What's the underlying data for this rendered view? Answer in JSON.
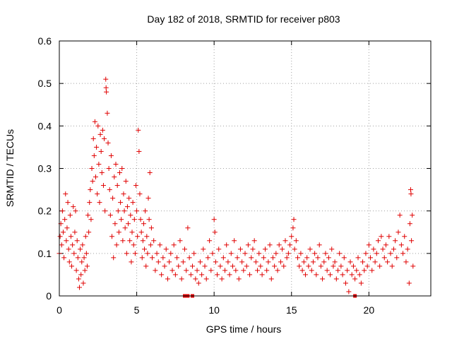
{
  "chart_data": {
    "type": "scatter",
    "title": "Day 182 of 2018, SRMTID for receiver p803",
    "xlabel": "GPS time / hours",
    "ylabel": "SRMTID / TECUs",
    "xlim": [
      0,
      24
    ],
    "ylim": [
      0,
      0.6
    ],
    "xticks": [
      0,
      5,
      10,
      15,
      20
    ],
    "yticks": [
      0,
      0.1,
      0.2,
      0.3,
      0.4,
      0.5,
      0.6
    ],
    "xtick_labels": [
      "0",
      "5",
      "10",
      "15",
      "20"
    ],
    "ytick_labels": [
      "0",
      "0.1",
      "0.2",
      "0.3",
      "0.4",
      "0.5",
      "0.6"
    ],
    "grid": true,
    "series_color": "#e00000",
    "series": [
      {
        "name": "SRMTID",
        "marker": "plus",
        "points": [
          [
            0.0,
            0.1
          ],
          [
            0.05,
            0.14
          ],
          [
            0.1,
            0.17
          ],
          [
            0.15,
            0.12
          ],
          [
            0.2,
            0.2
          ],
          [
            0.25,
            0.15
          ],
          [
            0.3,
            0.09
          ],
          [
            0.35,
            0.18
          ],
          [
            0.4,
            0.24
          ],
          [
            0.45,
            0.13
          ],
          [
            0.5,
            0.16
          ],
          [
            0.55,
            0.22
          ],
          [
            0.6,
            0.11
          ],
          [
            0.65,
            0.08
          ],
          [
            0.7,
            0.19
          ],
          [
            0.75,
            0.14
          ],
          [
            0.8,
            0.07
          ],
          [
            0.85,
            0.12
          ],
          [
            0.9,
            0.21
          ],
          [
            0.95,
            0.1
          ],
          [
            1.0,
            0.15
          ],
          [
            1.05,
            0.2
          ],
          [
            1.1,
            0.06
          ],
          [
            1.15,
            0.13
          ],
          [
            1.2,
            0.09
          ],
          [
            1.25,
            0.04
          ],
          [
            1.3,
            0.02
          ],
          [
            1.35,
            0.11
          ],
          [
            1.4,
            0.05
          ],
          [
            1.45,
            0.08
          ],
          [
            1.5,
            0.12
          ],
          [
            1.55,
            0.03
          ],
          [
            1.6,
            0.09
          ],
          [
            1.65,
            0.06
          ],
          [
            1.7,
            0.14
          ],
          [
            1.75,
            0.1
          ],
          [
            1.8,
            0.07
          ],
          [
            1.85,
            0.19
          ],
          [
            1.9,
            0.15
          ],
          [
            1.95,
            0.22
          ],
          [
            2.0,
            0.25
          ],
          [
            2.05,
            0.18
          ],
          [
            2.1,
            0.3
          ],
          [
            2.15,
            0.27
          ],
          [
            2.2,
            0.37
          ],
          [
            2.25,
            0.33
          ],
          [
            2.3,
            0.41
          ],
          [
            2.35,
            0.28
          ],
          [
            2.4,
            0.35
          ],
          [
            2.45,
            0.24
          ],
          [
            2.5,
            0.4
          ],
          [
            2.55,
            0.31
          ],
          [
            2.6,
            0.22
          ],
          [
            2.65,
            0.38
          ],
          [
            2.7,
            0.34
          ],
          [
            2.75,
            0.29
          ],
          [
            2.8,
            0.39
          ],
          [
            2.85,
            0.26
          ],
          [
            2.9,
            0.37
          ],
          [
            2.95,
            0.2
          ],
          [
            3.0,
            0.51
          ],
          [
            3.02,
            0.49
          ],
          [
            3.04,
            0.48
          ],
          [
            3.1,
            0.43
          ],
          [
            3.15,
            0.36
          ],
          [
            3.2,
            0.3
          ],
          [
            3.25,
            0.25
          ],
          [
            3.3,
            0.19
          ],
          [
            3.35,
            0.33
          ],
          [
            3.4,
            0.14
          ],
          [
            3.45,
            0.23
          ],
          [
            3.5,
            0.09
          ],
          [
            3.55,
            0.28
          ],
          [
            3.6,
            0.17
          ],
          [
            3.65,
            0.31
          ],
          [
            3.7,
            0.12
          ],
          [
            3.75,
            0.26
          ],
          [
            3.8,
            0.2
          ],
          [
            3.85,
            0.15
          ],
          [
            3.9,
            0.29
          ],
          [
            3.95,
            0.22
          ],
          [
            4.0,
            0.18
          ],
          [
            4.05,
            0.3
          ],
          [
            4.1,
            0.13
          ],
          [
            4.15,
            0.24
          ],
          [
            4.2,
            0.2
          ],
          [
            4.25,
            0.16
          ],
          [
            4.3,
            0.27
          ],
          [
            4.35,
            0.1
          ],
          [
            4.4,
            0.21
          ],
          [
            4.45,
            0.17
          ],
          [
            4.5,
            0.23
          ],
          [
            4.55,
            0.13
          ],
          [
            4.6,
            0.19
          ],
          [
            4.65,
            0.08
          ],
          [
            4.7,
            0.15
          ],
          [
            4.75,
            0.22
          ],
          [
            4.8,
            0.12
          ],
          [
            4.85,
            0.18
          ],
          [
            4.9,
            0.1
          ],
          [
            4.95,
            0.26
          ],
          [
            5.0,
            0.2
          ],
          [
            5.05,
            0.14
          ],
          [
            5.1,
            0.39
          ],
          [
            5.15,
            0.34
          ],
          [
            5.2,
            0.24
          ],
          [
            5.25,
            0.18
          ],
          [
            5.3,
            0.15
          ],
          [
            5.35,
            0.09
          ],
          [
            5.4,
            0.13
          ],
          [
            5.45,
            0.17
          ],
          [
            5.5,
            0.11
          ],
          [
            5.55,
            0.2
          ],
          [
            5.6,
            0.07
          ],
          [
            5.65,
            0.14
          ],
          [
            5.7,
            0.1
          ],
          [
            5.75,
            0.23
          ],
          [
            5.8,
            0.18
          ],
          [
            5.85,
            0.29
          ],
          [
            5.9,
            0.12
          ],
          [
            5.95,
            0.16
          ],
          [
            6.0,
            0.09
          ],
          [
            6.1,
            0.13
          ],
          [
            6.2,
            0.06
          ],
          [
            6.3,
            0.1
          ],
          [
            6.4,
            0.08
          ],
          [
            6.5,
            0.12
          ],
          [
            6.6,
            0.05
          ],
          [
            6.7,
            0.09
          ],
          [
            6.8,
            0.07
          ],
          [
            6.9,
            0.11
          ],
          [
            7.0,
            0.04
          ],
          [
            7.1,
            0.08
          ],
          [
            7.2,
            0.1
          ],
          [
            7.3,
            0.06
          ],
          [
            7.4,
            0.12
          ],
          [
            7.5,
            0.05
          ],
          [
            7.6,
            0.09
          ],
          [
            7.7,
            0.07
          ],
          [
            7.8,
            0.13
          ],
          [
            7.9,
            0.04
          ],
          [
            8.0,
            0.08
          ],
          [
            8.1,
            0.11
          ],
          [
            8.2,
            0.06
          ],
          [
            8.3,
            0.16
          ],
          [
            8.4,
            0.09
          ],
          [
            8.5,
            0.05
          ],
          [
            8.6,
            0.07
          ],
          [
            8.7,
            0.1
          ],
          [
            8.8,
            0.04
          ],
          [
            8.9,
            0.06
          ],
          [
            9.0,
            0.03
          ],
          [
            9.1,
            0.08
          ],
          [
            9.2,
            0.05
          ],
          [
            9.3,
            0.11
          ],
          [
            9.4,
            0.07
          ],
          [
            9.5,
            0.04
          ],
          [
            9.6,
            0.09
          ],
          [
            9.7,
            0.13
          ],
          [
            9.8,
            0.06
          ],
          [
            9.9,
            0.1
          ],
          [
            10.0,
            0.18
          ],
          [
            10.05,
            0.15
          ],
          [
            10.1,
            0.08
          ],
          [
            10.2,
            0.05
          ],
          [
            10.3,
            0.11
          ],
          [
            10.4,
            0.07
          ],
          [
            10.5,
            0.04
          ],
          [
            10.6,
            0.09
          ],
          [
            10.7,
            0.06
          ],
          [
            10.8,
            0.12
          ],
          [
            10.9,
            0.08
          ],
          [
            11.0,
            0.05
          ],
          [
            11.1,
            0.1
          ],
          [
            11.2,
            0.07
          ],
          [
            11.3,
            0.13
          ],
          [
            11.4,
            0.06
          ],
          [
            11.5,
            0.09
          ],
          [
            11.6,
            0.04
          ],
          [
            11.7,
            0.11
          ],
          [
            11.8,
            0.08
          ],
          [
            11.9,
            0.06
          ],
          [
            12.0,
            0.1
          ],
          [
            12.1,
            0.07
          ],
          [
            12.2,
            0.12
          ],
          [
            12.3,
            0.05
          ],
          [
            12.4,
            0.09
          ],
          [
            12.5,
            0.11
          ],
          [
            12.6,
            0.13
          ],
          [
            12.7,
            0.08
          ],
          [
            12.8,
            0.06
          ],
          [
            12.9,
            0.1
          ],
          [
            13.0,
            0.07
          ],
          [
            13.1,
            0.05
          ],
          [
            13.2,
            0.09
          ],
          [
            13.3,
            0.11
          ],
          [
            13.4,
            0.06
          ],
          [
            13.5,
            0.08
          ],
          [
            13.6,
            0.12
          ],
          [
            13.7,
            0.04
          ],
          [
            13.8,
            0.09
          ],
          [
            13.9,
            0.07
          ],
          [
            14.0,
            0.1
          ],
          [
            14.1,
            0.06
          ],
          [
            14.2,
            0.12
          ],
          [
            14.3,
            0.08
          ],
          [
            14.4,
            0.11
          ],
          [
            14.5,
            0.07
          ],
          [
            14.6,
            0.13
          ],
          [
            14.7,
            0.09
          ],
          [
            14.8,
            0.1
          ],
          [
            14.9,
            0.12
          ],
          [
            15.0,
            0.14
          ],
          [
            15.1,
            0.16
          ],
          [
            15.15,
            0.18
          ],
          [
            15.2,
            0.11
          ],
          [
            15.3,
            0.13
          ],
          [
            15.4,
            0.09
          ],
          [
            15.5,
            0.07
          ],
          [
            15.6,
            0.1
          ],
          [
            15.7,
            0.06
          ],
          [
            15.8,
            0.08
          ],
          [
            15.9,
            0.05
          ],
          [
            16.0,
            0.09
          ],
          [
            16.1,
            0.07
          ],
          [
            16.2,
            0.11
          ],
          [
            16.3,
            0.06
          ],
          [
            16.4,
            0.08
          ],
          [
            16.5,
            0.1
          ],
          [
            16.6,
            0.05
          ],
          [
            16.7,
            0.09
          ],
          [
            16.8,
            0.12
          ],
          [
            16.9,
            0.07
          ],
          [
            17.0,
            0.04
          ],
          [
            17.1,
            0.08
          ],
          [
            17.2,
            0.1
          ],
          [
            17.3,
            0.06
          ],
          [
            17.4,
            0.09
          ],
          [
            17.5,
            0.05
          ],
          [
            17.6,
            0.11
          ],
          [
            17.7,
            0.07
          ],
          [
            17.8,
            0.08
          ],
          [
            17.9,
            0.04
          ],
          [
            18.0,
            0.06
          ],
          [
            18.1,
            0.1
          ],
          [
            18.2,
            0.07
          ],
          [
            18.3,
            0.05
          ],
          [
            18.4,
            0.09
          ],
          [
            18.5,
            0.03
          ],
          [
            18.6,
            0.06
          ],
          [
            18.7,
            0.01
          ],
          [
            18.8,
            0.08
          ],
          [
            18.9,
            0.05
          ],
          [
            19.0,
            0.07
          ],
          [
            19.1,
            0.04
          ],
          [
            19.2,
            0.06
          ],
          [
            19.3,
            0.09
          ],
          [
            19.4,
            0.05
          ],
          [
            19.5,
            0.03
          ],
          [
            19.6,
            0.08
          ],
          [
            19.7,
            0.06
          ],
          [
            19.8,
            0.1
          ],
          [
            19.9,
            0.07
          ],
          [
            20.0,
            0.12
          ],
          [
            20.1,
            0.09
          ],
          [
            20.2,
            0.06
          ],
          [
            20.3,
            0.11
          ],
          [
            20.4,
            0.08
          ],
          [
            20.5,
            0.1
          ],
          [
            20.6,
            0.13
          ],
          [
            20.7,
            0.07
          ],
          [
            20.8,
            0.14
          ],
          [
            20.9,
            0.11
          ],
          [
            21.0,
            0.09
          ],
          [
            21.1,
            0.12
          ],
          [
            21.2,
            0.08
          ],
          [
            21.3,
            0.14
          ],
          [
            21.4,
            0.1
          ],
          [
            21.5,
            0.07
          ],
          [
            21.6,
            0.11
          ],
          [
            21.7,
            0.13
          ],
          [
            21.8,
            0.09
          ],
          [
            21.9,
            0.15
          ],
          [
            22.0,
            0.19
          ],
          [
            22.1,
            0.12
          ],
          [
            22.2,
            0.1
          ],
          [
            22.3,
            0.14
          ],
          [
            22.4,
            0.08
          ],
          [
            22.5,
            0.11
          ],
          [
            22.6,
            0.03
          ],
          [
            22.65,
            0.17
          ],
          [
            22.7,
            0.25
          ],
          [
            22.72,
            0.24
          ],
          [
            22.75,
            0.13
          ],
          [
            22.8,
            0.19
          ],
          [
            22.85,
            0.07
          ]
        ]
      }
    ],
    "zero_markers_x": [
      8.1,
      8.3,
      8.6,
      19.1
    ]
  }
}
